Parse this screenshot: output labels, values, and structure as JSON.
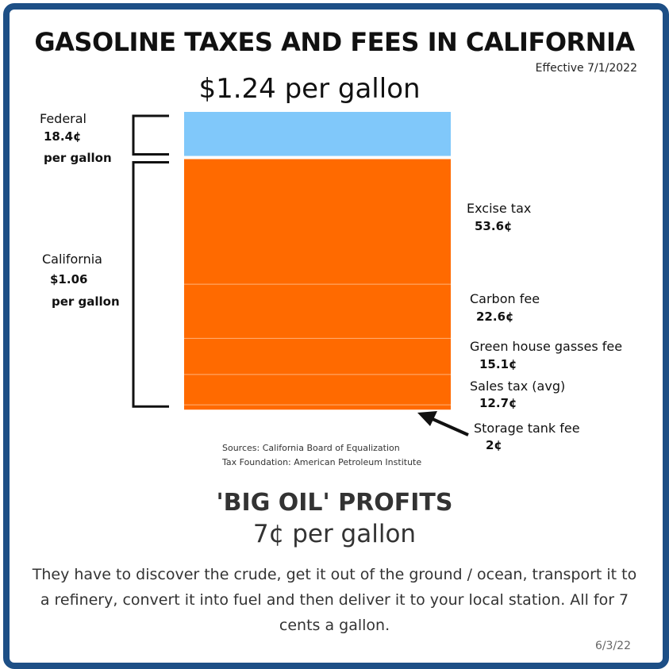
{
  "title": "GASOLINE TAXES AND FEES IN CALIFORNIA",
  "effective": "Effective 7/1/2022",
  "total": "$1.24 per gallon",
  "left_groups": {
    "federal": {
      "name": "Federal",
      "value": "18.4¢",
      "unit": "per gallon"
    },
    "california": {
      "name": "California",
      "value": "$1.06",
      "unit": "per gallon"
    }
  },
  "right_labels": {
    "excise": {
      "name": "Excise tax",
      "value": "53.6¢"
    },
    "carbon": {
      "name": "Carbon fee",
      "value": "22.6¢"
    },
    "greenhouse": {
      "name": "Green house gasses fee",
      "value": "15.1¢"
    },
    "sales": {
      "name": "Sales tax (avg)",
      "value": "12.7¢"
    },
    "storage": {
      "name": "Storage tank fee",
      "value": "2¢"
    }
  },
  "sources": {
    "line1": "Sources: California Board of Equalization",
    "line2": "Tax Foundation: American Petroleum Institute"
  },
  "big_oil": {
    "title": "'BIG OIL' PROFITS",
    "subtitle": "7¢ per gallon",
    "description": "They have to discover the crude, get it out of the ground / ocean, transport it to a refinery, convert it into fuel and then deliver it to your local station. All for 7 cents a gallon."
  },
  "date": "6/3/22",
  "colors": {
    "federal": "#80c8fa",
    "california": "#ff6a00",
    "frame": "#1d4f86"
  },
  "chart_data": {
    "type": "bar",
    "stacked": true,
    "unit": "cents per gallon",
    "title": "GASOLINE TAXES AND FEES IN CALIFORNIA",
    "total": 124,
    "segments": [
      {
        "name": "Federal",
        "value": 18.4,
        "group": "Federal"
      },
      {
        "name": "Excise tax",
        "value": 53.6,
        "group": "California"
      },
      {
        "name": "Carbon fee",
        "value": 22.6,
        "group": "California"
      },
      {
        "name": "Green house gasses fee",
        "value": 15.1,
        "group": "California"
      },
      {
        "name": "Sales tax (avg)",
        "value": 12.7,
        "group": "California"
      },
      {
        "name": "Storage tank fee",
        "value": 2,
        "group": "California"
      }
    ]
  }
}
